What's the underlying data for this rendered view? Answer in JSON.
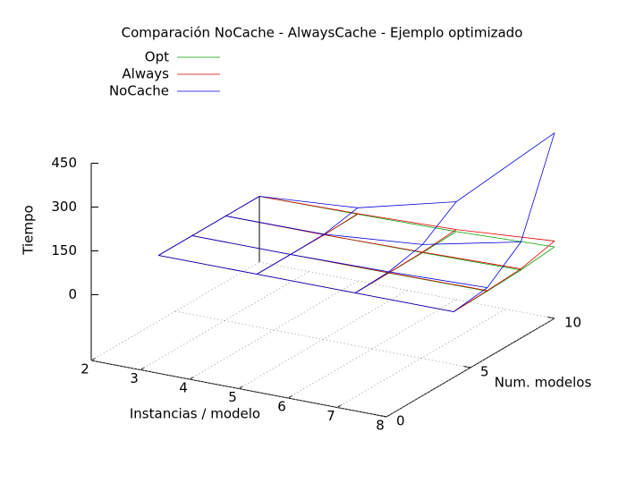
{
  "chart_data": {
    "type": "surface3d",
    "title": "Comparación NoCache - AlwaysCache - Ejemplo optimizado",
    "x_label": "Instancias / modelo",
    "y_label": "Num. modelos",
    "z_label": "Tiempo",
    "x": [
      2,
      4,
      6,
      8
    ],
    "y": [
      4,
      6,
      8,
      10
    ],
    "xlim": [
      2,
      8
    ],
    "xticks": [
      2,
      3,
      4,
      5,
      6,
      7,
      8
    ],
    "ylim": [
      0,
      10
    ],
    "yticks": [
      0,
      5,
      10
    ],
    "zlim": [
      0,
      450
    ],
    "zticks": [
      0,
      150,
      300,
      450
    ],
    "grid": true,
    "legend": "top-left",
    "series": [
      {
        "name": "Opt",
        "color": "#00a000",
        "values": [
          [
            0,
            0,
            0,
            0
          ],
          [
            0,
            0,
            0,
            3
          ],
          [
            0,
            1,
            3,
            8
          ],
          [
            0,
            3,
            8,
            20
          ]
        ]
      },
      {
        "name": "Always",
        "color": "#e00000",
        "values": [
          [
            0,
            0,
            0,
            0
          ],
          [
            0,
            0,
            0,
            5
          ],
          [
            0,
            2,
            5,
            15
          ],
          [
            0,
            5,
            12,
            40
          ]
        ]
      },
      {
        "name": "NoCache",
        "color": "#0000e0",
        "values": [
          [
            0,
            0,
            0,
            0
          ],
          [
            0,
            0,
            2,
            25
          ],
          [
            0,
            5,
            31,
            110
          ],
          [
            0,
            15,
            104,
            410
          ]
        ]
      }
    ]
  }
}
